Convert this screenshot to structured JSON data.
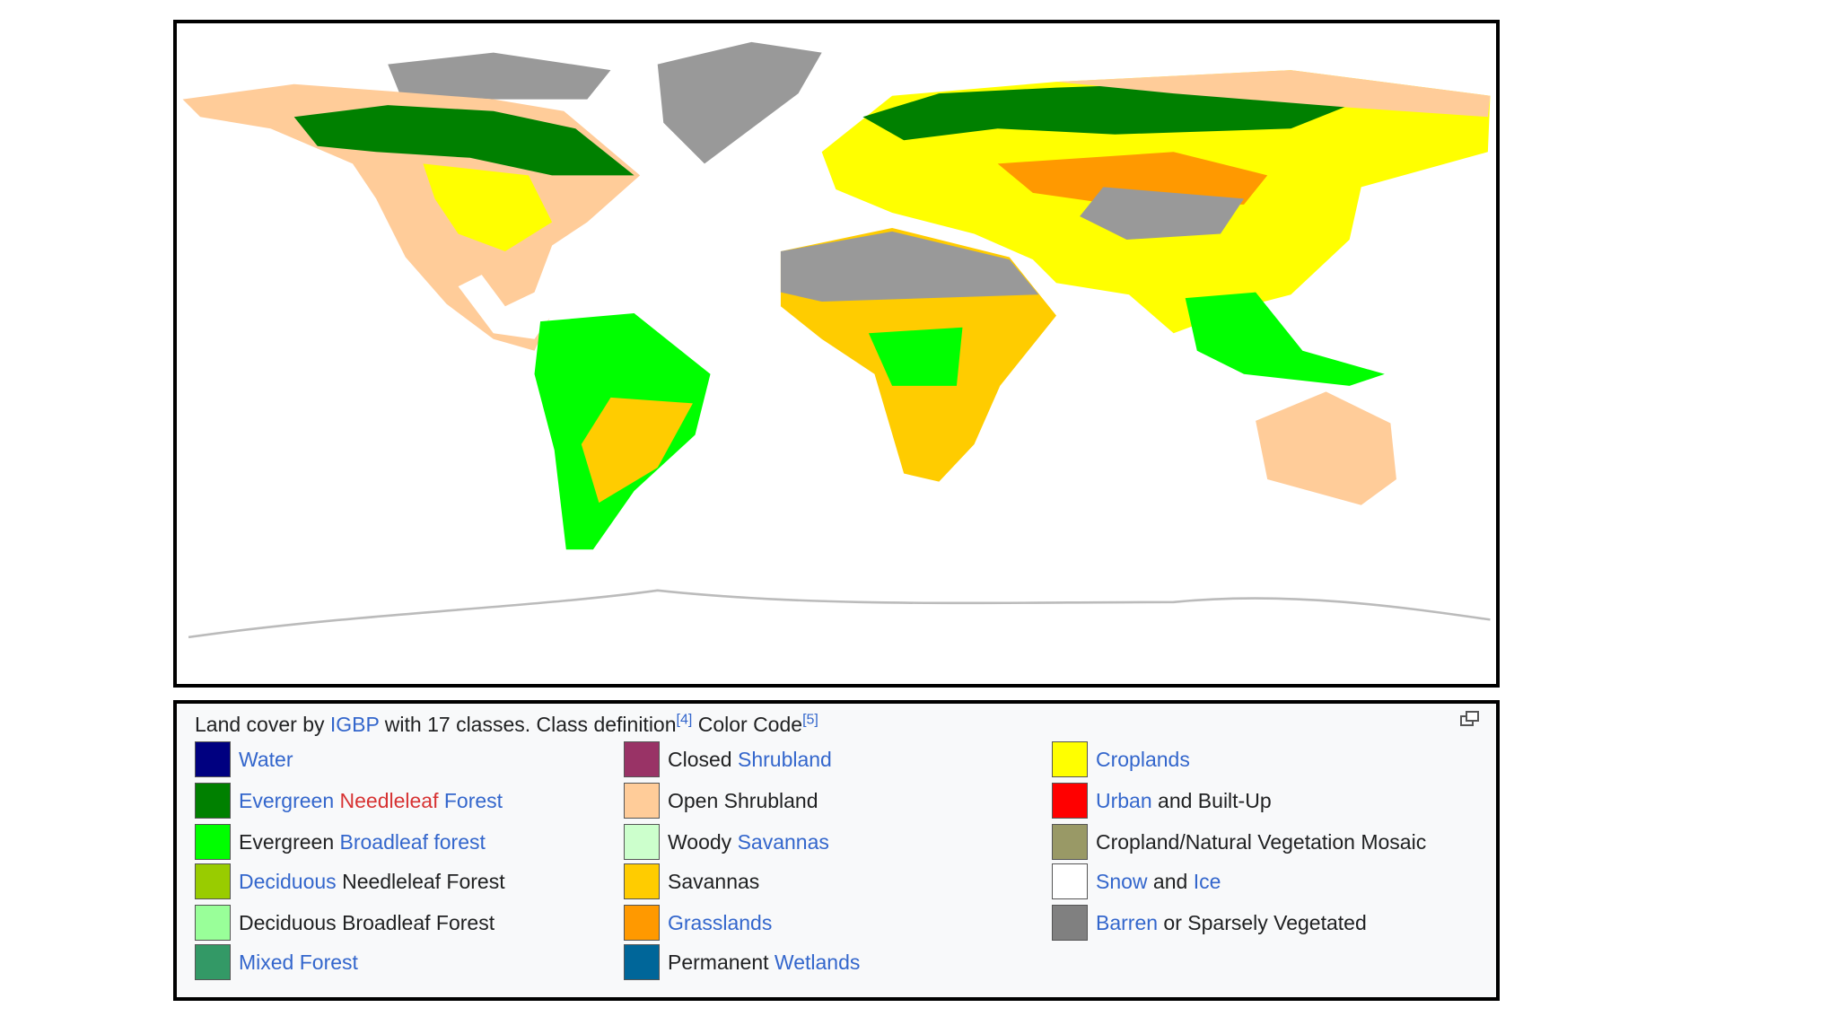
{
  "caption": [
    {
      "text": "Land cover by "
    },
    {
      "text": "IGBP",
      "link": "blue"
    },
    {
      "text": " with 17 classes. Class definition"
    },
    {
      "text": "[4]",
      "link": "blue",
      "sup": true
    },
    {
      "text": " Color Code"
    },
    {
      "text": "[5]",
      "link": "blue",
      "sup": true
    }
  ],
  "legend": [
    [
      {
        "color": "#000080",
        "label": [
          {
            "text": "Water",
            "link": "blue"
          }
        ]
      },
      {
        "color": "#008000",
        "label": [
          {
            "text": "Evergreen",
            "link": "blue"
          },
          {
            "text": " "
          },
          {
            "text": "Needleleaf",
            "link": "red"
          },
          {
            "text": " "
          },
          {
            "text": "Forest",
            "link": "blue"
          }
        ]
      },
      {
        "color": "#00ff00",
        "label": [
          {
            "text": "Evergreen "
          },
          {
            "text": "Broadleaf forest",
            "link": "blue"
          }
        ]
      },
      {
        "color": "#99cc00",
        "label": [
          {
            "text": "Deciduous",
            "link": "blue"
          },
          {
            "text": " Needleleaf Forest"
          }
        ]
      },
      {
        "color": "#99ff99",
        "label": [
          {
            "text": "Deciduous Broadleaf Forest"
          }
        ]
      },
      {
        "color": "#339966",
        "label": [
          {
            "text": "Mixed Forest",
            "link": "blue"
          }
        ]
      }
    ],
    [
      {
        "color": "#993366",
        "label": [
          {
            "text": "Closed "
          },
          {
            "text": "Shrubland",
            "link": "blue"
          }
        ]
      },
      {
        "color": "#ffcc99",
        "label": [
          {
            "text": "Open Shrubland"
          }
        ]
      },
      {
        "color": "#ccffcc",
        "label": [
          {
            "text": "Woody "
          },
          {
            "text": "Savannas",
            "link": "blue"
          }
        ]
      },
      {
        "color": "#ffcc00",
        "label": [
          {
            "text": "Savannas"
          }
        ]
      },
      {
        "color": "#ff9900",
        "label": [
          {
            "text": "Grasslands",
            "link": "blue"
          }
        ]
      },
      {
        "color": "#006699",
        "label": [
          {
            "text": "Permanent "
          },
          {
            "text": "Wetlands",
            "link": "blue"
          }
        ]
      }
    ],
    [
      {
        "color": "#ffff00",
        "label": [
          {
            "text": "Croplands",
            "link": "blue"
          }
        ]
      },
      {
        "color": "#ff0000",
        "label": [
          {
            "text": "Urban",
            "link": "blue"
          },
          {
            "text": " and Built-Up"
          }
        ]
      },
      {
        "color": "#999966",
        "label": [
          {
            "text": "Cropland/Natural Vegetation Mosaic"
          }
        ]
      },
      {
        "color": "#ffffff",
        "label": [
          {
            "text": "Snow",
            "link": "blue"
          },
          {
            "text": " and "
          },
          {
            "text": "Ice",
            "link": "blue"
          }
        ]
      },
      {
        "color": "#808080",
        "label": [
          {
            "text": "Barren",
            "link": "blue"
          },
          {
            "text": " or Sparsely Vegetated"
          }
        ]
      }
    ]
  ]
}
